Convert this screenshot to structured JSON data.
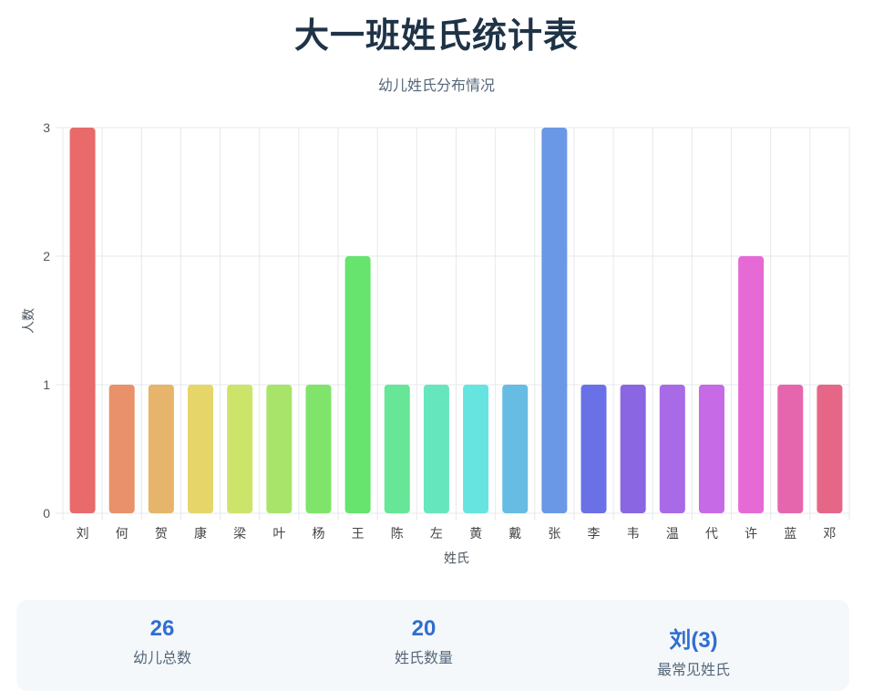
{
  "chart_data": {
    "type": "bar",
    "title": "大一班姓氏统计表",
    "subtitle": "幼儿姓氏分布情况",
    "xlabel": "姓氏",
    "ylabel": "人数",
    "categories": [
      "刘",
      "何",
      "贺",
      "康",
      "梁",
      "叶",
      "杨",
      "王",
      "陈",
      "左",
      "黄",
      "戴",
      "张",
      "李",
      "韦",
      "温",
      "代",
      "许",
      "蓝",
      "邓"
    ],
    "values": [
      3,
      1,
      1,
      1,
      1,
      1,
      1,
      2,
      1,
      1,
      1,
      1,
      3,
      1,
      1,
      1,
      1,
      2,
      1,
      1
    ],
    "ylim": [
      0,
      3
    ],
    "yticks": [
      0,
      1,
      2,
      3
    ],
    "grid": true,
    "colors": [
      "#e86a6a",
      "#e8916a",
      "#e6b46a",
      "#e6d66a",
      "#cde46a",
      "#a8e46a",
      "#80e46a",
      "#66e46e",
      "#66e696",
      "#66e6bc",
      "#66e4e0",
      "#66bce2",
      "#6a98e6",
      "#6a70e6",
      "#8a66e2",
      "#a86ae6",
      "#c66ae6",
      "#e66ad6",
      "#e666ae",
      "#e66688"
    ],
    "legend": "none"
  },
  "stats": [
    {
      "value": "26",
      "label": "幼儿总数"
    },
    {
      "value": "20",
      "label": "姓氏数量"
    },
    {
      "value": "刘(3)",
      "label": "最常见姓氏"
    }
  ]
}
